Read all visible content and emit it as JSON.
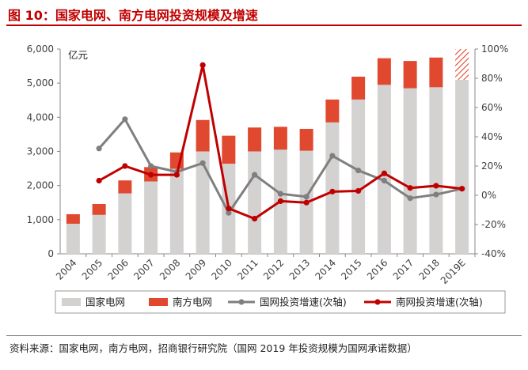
{
  "header": {
    "title": "图 10：国家电网、南方电网投资规模及增速"
  },
  "footer": {
    "source": "资料来源：国家电网，南方电网，招商银行研究院（国网 2019 年投资规模为国网承诺数据）"
  },
  "colors": {
    "title": "#c00000",
    "state_grid_bar": "#d4d1d1",
    "south_grid_bar": "#e0492f",
    "state_grid_line": "#7f7f7f",
    "south_grid_line": "#c00000",
    "axis": "#888888",
    "text": "#404040"
  },
  "chart_data": {
    "type": "bar",
    "stacked": true,
    "categories": [
      "2004",
      "2005",
      "2006",
      "2007",
      "2008",
      "2009",
      "2010",
      "2011",
      "2012",
      "2013",
      "2014",
      "2015",
      "2016",
      "2017",
      "2018",
      "2019E"
    ],
    "ylabel": "亿元",
    "ylim": [
      0,
      6000
    ],
    "y_ticks": [
      "0",
      "1,000",
      "2,000",
      "3,000",
      "4,000",
      "5,000",
      "6,000"
    ],
    "y2lim": [
      -40,
      100
    ],
    "y2_ticks": [
      "-40%",
      "-20%",
      "0%",
      "20%",
      "40%",
      "60%",
      "80%",
      "100%"
    ],
    "series": [
      {
        "name": "国家电网",
        "kind": "bar",
        "axis": "left",
        "values": [
          880,
          1140,
          1770,
          2120,
          2490,
          3000,
          2640,
          3000,
          3050,
          3020,
          3850,
          4520,
          4950,
          4850,
          4880,
          5100
        ]
      },
      {
        "name": "南方电网",
        "kind": "bar",
        "axis": "left",
        "values": [
          280,
          320,
          380,
          420,
          480,
          920,
          820,
          700,
          670,
          640,
          670,
          670,
          780,
          800,
          870,
          900
        ],
        "hatched_category": "2019E"
      },
      {
        "name": "国网投资增速(次轴)",
        "kind": "line",
        "axis": "right",
        "values": [
          null,
          32,
          52,
          20,
          16,
          22,
          -12,
          14,
          1,
          -1,
          27,
          17,
          10,
          -2,
          0.5,
          4.5
        ]
      },
      {
        "name": "南网投资增速(次轴)",
        "kind": "line",
        "axis": "right",
        "values": [
          null,
          10,
          20,
          14,
          14,
          89,
          -9,
          -16,
          -4,
          -5,
          2.5,
          3,
          15,
          5,
          6.5,
          4.5
        ]
      }
    ],
    "legend": "bottom"
  }
}
